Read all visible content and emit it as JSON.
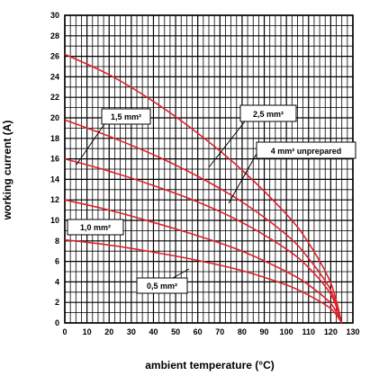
{
  "chart_data": {
    "type": "line",
    "xlabel": "ambient temperature (°C)",
    "ylabel": "working current (A)",
    "xlim": [
      0,
      130
    ],
    "ylim": [
      0,
      30
    ],
    "x_ticks": [
      0,
      10,
      20,
      30,
      40,
      50,
      60,
      70,
      80,
      90,
      100,
      110,
      120,
      130
    ],
    "y_ticks": [
      0,
      2,
      4,
      6,
      8,
      10,
      12,
      14,
      16,
      18,
      20,
      22,
      24,
      26,
      28,
      30
    ],
    "grid": true,
    "series_color": "#e0202a",
    "series": [
      {
        "name": "0,5 mm²",
        "x": [
          0,
          20,
          40,
          60,
          80,
          100,
          110,
          120,
          125
        ],
        "y": [
          8.1,
          7.6,
          6.9,
          6.1,
          5.1,
          3.7,
          2.7,
          1.4,
          0
        ]
      },
      {
        "name": "1,0 mm²",
        "x": [
          0,
          20,
          40,
          60,
          80,
          100,
          110,
          120,
          125
        ],
        "y": [
          12,
          11.0,
          9.8,
          8.5,
          7.0,
          5.0,
          3.7,
          1.9,
          0
        ]
      },
      {
        "name": "1,5 mm²",
        "x": [
          0,
          20,
          40,
          60,
          80,
          100,
          110,
          120,
          125
        ],
        "y": [
          16,
          14.8,
          13.4,
          11.8,
          9.8,
          7.2,
          5.4,
          2.8,
          0
        ]
      },
      {
        "name": "2,5 mm²",
        "x": [
          0,
          20,
          40,
          60,
          80,
          100,
          110,
          120,
          125
        ],
        "y": [
          19.8,
          18.2,
          16.4,
          14.3,
          11.8,
          8.6,
          6.3,
          3.2,
          0
        ]
      },
      {
        "name": "4 mm² unprepared",
        "x": [
          0,
          20,
          40,
          60,
          80,
          100,
          110,
          120,
          125
        ],
        "y": [
          26.2,
          24.2,
          21.6,
          18.5,
          14.9,
          10.6,
          7.8,
          3.9,
          0
        ]
      }
    ],
    "annotations": [
      {
        "label": "1,5 mm²"
      },
      {
        "label": "2,5 mm²"
      },
      {
        "label": "4 mm² unprepared"
      },
      {
        "label": "1,0 mm²"
      },
      {
        "label": "0,5 mm²"
      }
    ]
  }
}
